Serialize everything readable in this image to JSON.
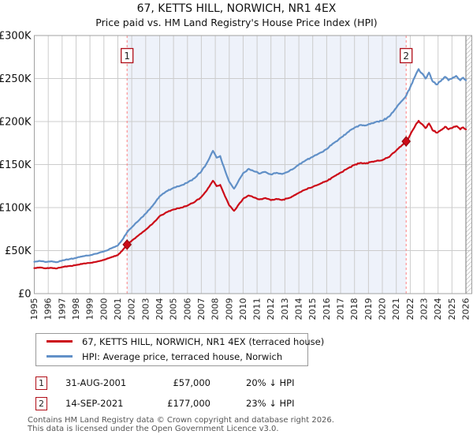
{
  "header": {
    "title": "67, KETTS HILL, NORWICH, NR1 4EX",
    "subtitle": "Price paid vs. HM Land Registry's House Price Index (HPI)"
  },
  "chart_data": {
    "type": "line",
    "title": "67, KETTS HILL, NORWICH, NR1 4EX — Price paid vs. HPI",
    "x_axis": {
      "start": 1995,
      "end": 2026,
      "tick_labels": [
        "1995",
        "1996",
        "1997",
        "1998",
        "1999",
        "2000",
        "2001",
        "2002",
        "2003",
        "2004",
        "2005",
        "2006",
        "2007",
        "2008",
        "2009",
        "2010",
        "2011",
        "2012",
        "2013",
        "2014",
        "2015",
        "2016",
        "2017",
        "2018",
        "2019",
        "2020",
        "2021",
        "2022",
        "2023",
        "2024",
        "2025",
        "2026"
      ]
    },
    "y_axis": {
      "max": 300000,
      "ticks": [
        {
          "value": 0,
          "label": "£0"
        },
        {
          "value": 50000,
          "label": "£50K"
        },
        {
          "value": 100000,
          "label": "£100K"
        },
        {
          "value": 150000,
          "label": "£150K"
        },
        {
          "value": 200000,
          "label": "£200K"
        },
        {
          "value": 250000,
          "label": "£250K"
        },
        {
          "value": 300000,
          "label": "£300K"
        }
      ]
    },
    "grid": true,
    "shade_color": "#eef2fa",
    "event_line_color": "#ff8080",
    "events": [
      {
        "label": "1",
        "year": 2001.664,
        "value": 57000
      },
      {
        "label": "2",
        "year": 2021.706,
        "value": 177000
      }
    ],
    "series": [
      {
        "name": "67, KETTS HILL, NORWICH, NR1 4EX (terraced house)",
        "color": "#cc0b18",
        "points": [
          [
            1995.0,
            29600
          ],
          [
            1995.4,
            30400
          ],
          [
            1995.8,
            29400
          ],
          [
            1996.2,
            30000
          ],
          [
            1996.6,
            29200
          ],
          [
            1997.0,
            30800
          ],
          [
            1997.5,
            32000
          ],
          [
            1998.0,
            33200
          ],
          [
            1998.5,
            34800
          ],
          [
            1999.0,
            35600
          ],
          [
            1999.5,
            37200
          ],
          [
            2000.0,
            39200
          ],
          [
            2000.5,
            42000
          ],
          [
            2001.0,
            44800
          ],
          [
            2001.3,
            49600
          ],
          [
            2001.664,
            57000
          ],
          [
            2002.0,
            61500
          ],
          [
            2002.5,
            67900
          ],
          [
            2003.0,
            74200
          ],
          [
            2003.5,
            81300
          ],
          [
            2004.0,
            90000
          ],
          [
            2004.5,
            94700
          ],
          [
            2005.0,
            97800
          ],
          [
            2005.5,
            99700
          ],
          [
            2006.0,
            102300
          ],
          [
            2006.5,
            106200
          ],
          [
            2007.0,
            112400
          ],
          [
            2007.4,
            120300
          ],
          [
            2007.83,
            131200
          ],
          [
            2008.1,
            124900
          ],
          [
            2008.35,
            126400
          ],
          [
            2008.7,
            112900
          ],
          [
            2009.0,
            102500
          ],
          [
            2009.35,
            96200
          ],
          [
            2009.7,
            104000
          ],
          [
            2010.0,
            110200
          ],
          [
            2010.4,
            114100
          ],
          [
            2010.8,
            111600
          ],
          [
            2011.2,
            109600
          ],
          [
            2011.6,
            111100
          ],
          [
            2012.0,
            108600
          ],
          [
            2012.4,
            110100
          ],
          [
            2012.8,
            108800
          ],
          [
            2013.2,
            110700
          ],
          [
            2013.6,
            113400
          ],
          [
            2014.0,
            117200
          ],
          [
            2014.5,
            121000
          ],
          [
            2015.0,
            124000
          ],
          [
            2015.5,
            127400
          ],
          [
            2016.0,
            130700
          ],
          [
            2016.5,
            136000
          ],
          [
            2017.0,
            140600
          ],
          [
            2017.5,
            145500
          ],
          [
            2018.0,
            149600
          ],
          [
            2018.4,
            151800
          ],
          [
            2018.8,
            151300
          ],
          [
            2019.2,
            153100
          ],
          [
            2019.6,
            154500
          ],
          [
            2020.0,
            155200
          ],
          [
            2020.5,
            158900
          ],
          [
            2021.0,
            166400
          ],
          [
            2021.4,
            172500
          ],
          [
            2021.706,
            177000
          ],
          [
            2022.0,
            184700
          ],
          [
            2022.3,
            193200
          ],
          [
            2022.6,
            200900
          ],
          [
            2022.85,
            197000
          ],
          [
            2023.1,
            192400
          ],
          [
            2023.35,
            197800
          ],
          [
            2023.6,
            190100
          ],
          [
            2023.9,
            187000
          ],
          [
            2024.2,
            190100
          ],
          [
            2024.5,
            193900
          ],
          [
            2024.75,
            190900
          ],
          [
            2025.0,
            192400
          ],
          [
            2025.3,
            194700
          ],
          [
            2025.6,
            190900
          ],
          [
            2025.8,
            193200
          ],
          [
            2026.0,
            190900
          ]
        ]
      },
      {
        "name": "HPI: Average price, terraced house, Norwich",
        "color": "#6190c7",
        "points": [
          [
            1995.0,
            37000
          ],
          [
            1995.4,
            38000
          ],
          [
            1995.8,
            36800
          ],
          [
            1996.2,
            37500
          ],
          [
            1996.6,
            36500
          ],
          [
            1997.0,
            38500
          ],
          [
            1997.5,
            40000
          ],
          [
            1998.0,
            41500
          ],
          [
            1998.5,
            43500
          ],
          [
            1999.0,
            44500
          ],
          [
            1999.5,
            46500
          ],
          [
            2000.0,
            49000
          ],
          [
            2000.5,
            52500
          ],
          [
            2001.0,
            56000
          ],
          [
            2001.3,
            62000
          ],
          [
            2001.664,
            71250
          ],
          [
            2002.0,
            77000
          ],
          [
            2002.5,
            85000
          ],
          [
            2003.0,
            93000
          ],
          [
            2003.5,
            102000
          ],
          [
            2004.0,
            113000
          ],
          [
            2004.5,
            119000
          ],
          [
            2005.0,
            123000
          ],
          [
            2005.5,
            125500
          ],
          [
            2006.0,
            129000
          ],
          [
            2006.5,
            134000
          ],
          [
            2007.0,
            142000
          ],
          [
            2007.4,
            152000
          ],
          [
            2007.83,
            166000
          ],
          [
            2008.1,
            158000
          ],
          [
            2008.35,
            160000
          ],
          [
            2008.7,
            143000
          ],
          [
            2009.0,
            130000
          ],
          [
            2009.35,
            122000
          ],
          [
            2009.7,
            132000
          ],
          [
            2010.0,
            140000
          ],
          [
            2010.4,
            145000
          ],
          [
            2010.8,
            142000
          ],
          [
            2011.2,
            139500
          ],
          [
            2011.6,
            141500
          ],
          [
            2012.0,
            138500
          ],
          [
            2012.4,
            140500
          ],
          [
            2012.8,
            139000
          ],
          [
            2013.2,
            141500
          ],
          [
            2013.6,
            145000
          ],
          [
            2014.0,
            150000
          ],
          [
            2014.5,
            155000
          ],
          [
            2015.0,
            159000
          ],
          [
            2015.5,
            163500
          ],
          [
            2016.0,
            168000
          ],
          [
            2016.5,
            175000
          ],
          [
            2017.0,
            181000
          ],
          [
            2017.5,
            187500
          ],
          [
            2018.0,
            193000
          ],
          [
            2018.4,
            196000
          ],
          [
            2018.8,
            195500
          ],
          [
            2019.2,
            198000
          ],
          [
            2019.6,
            200000
          ],
          [
            2020.0,
            201000
          ],
          [
            2020.5,
            206000
          ],
          [
            2021.0,
            216000
          ],
          [
            2021.4,
            224000
          ],
          [
            2021.706,
            230000
          ],
          [
            2022.0,
            240000
          ],
          [
            2022.3,
            251000
          ],
          [
            2022.6,
            261000
          ],
          [
            2022.85,
            256000
          ],
          [
            2023.1,
            250000
          ],
          [
            2023.35,
            257000
          ],
          [
            2023.6,
            247000
          ],
          [
            2023.9,
            243000
          ],
          [
            2024.2,
            247000
          ],
          [
            2024.5,
            252000
          ],
          [
            2024.75,
            248000
          ],
          [
            2025.0,
            250000
          ],
          [
            2025.3,
            253000
          ],
          [
            2025.6,
            248000
          ],
          [
            2025.8,
            251000
          ],
          [
            2026.0,
            248000
          ]
        ]
      }
    ]
  },
  "legend": {
    "items": [
      {
        "label": "67, KETTS HILL, NORWICH, NR1 4EX (terraced house)",
        "color": "#cc0b18"
      },
      {
        "label": "HPI: Average price, terraced house, Norwich",
        "color": "#6190c7"
      }
    ]
  },
  "annotations": [
    {
      "num": "1",
      "date": "31-AUG-2001",
      "price": "£57,000",
      "hpi": "20% ↓ HPI"
    },
    {
      "num": "2",
      "date": "14-SEP-2021",
      "price": "£177,000",
      "hpi": "23% ↓ HPI"
    }
  ],
  "footer": {
    "line1": "Contains HM Land Registry data © Crown copyright and database right 2026.",
    "line2": "This data is licensed under the Open Government Licence v3.0."
  }
}
